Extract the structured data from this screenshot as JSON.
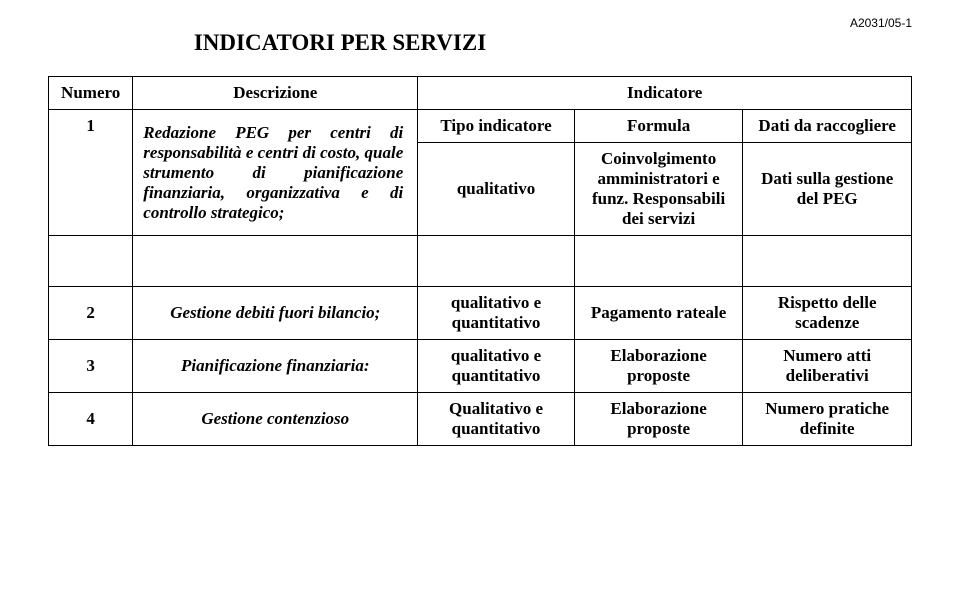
{
  "doc_id": "A2031/05-1",
  "title": "INDICATORI PER SERVIZI",
  "headers": {
    "numero": "Numero",
    "descrizione": "Descrizione",
    "indicatore": "Indicatore"
  },
  "subheaders": {
    "tipo": "Tipo indicatore",
    "formula": "Formula",
    "dati": "Dati da raccogliere"
  },
  "row1": {
    "numero": "1",
    "descrizione": "Redazione PEG per centri di responsabilità e centri di costo, quale strumento di pianificazione finanziaria, organizzativa e di controllo strategico;",
    "tipo": "qualitativo",
    "formula": "Coinvolgimento amministratori e funz. Responsabili dei servizi",
    "dati": "Dati sulla gestione del PEG"
  },
  "row2": {
    "numero": "2",
    "descrizione": "Gestione debiti fuori bilancio;",
    "tipo": "qualitativo e quantitativo",
    "formula": "Pagamento rateale",
    "dati": "Rispetto delle scadenze"
  },
  "row3": {
    "numero": "3",
    "descrizione": "Pianificazione finanziaria:",
    "tipo": "qualitativo e quantitativo",
    "formula": "Elaborazione proposte",
    "dati": "Numero atti deliberativi"
  },
  "row4": {
    "numero": "4",
    "descrizione": "Gestione contenzioso",
    "tipo": "Qualitativo e quantitativo",
    "formula": "Elaborazione proposte",
    "dati": "Numero pratiche definite"
  }
}
